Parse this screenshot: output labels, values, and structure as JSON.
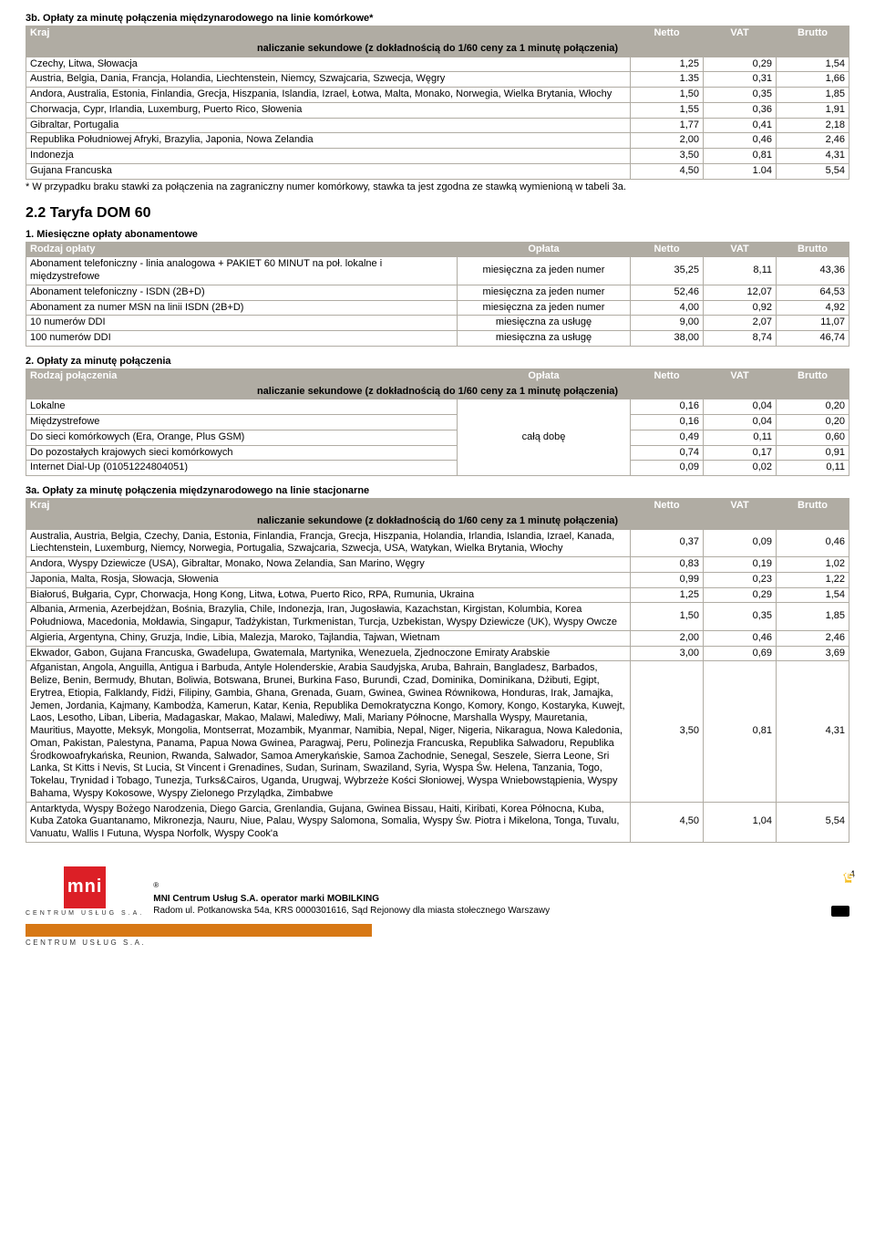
{
  "sec3b": {
    "title": "3b. Opłaty za minutę połączenia międzynarodowego na linie komórkowe*",
    "headers": [
      "Kraj",
      "Netto",
      "VAT",
      "Brutto"
    ],
    "subhead": "naliczanie sekundowe (z dokładnością do 1/60 ceny za 1 minutę połączenia)",
    "rows": [
      [
        "Czechy, Litwa, Słowacja",
        "1,25",
        "0,29",
        "1,54"
      ],
      [
        "Austria, Belgia, Dania, Francja, Holandia, Liechtenstein, Niemcy, Szwajcaria, Szwecja, Węgry",
        "1.35",
        "0,31",
        "1,66"
      ],
      [
        "Andora, Australia, Estonia, Finlandia, Grecja, Hiszpania, Islandia, Izrael, Łotwa, Malta, Monako, Norwegia, Wielka Brytania, Włochy",
        "1,50",
        "0,35",
        "1,85"
      ],
      [
        "Chorwacja, Cypr, Irlandia, Luxemburg, Puerto Rico, Słowenia",
        "1,55",
        "0,36",
        "1,91"
      ],
      [
        "Gibraltar, Portugalia",
        "1,77",
        "0,41",
        "2,18"
      ],
      [
        "Republika Południowej Afryki, Brazylia, Japonia, Nowa Zelandia",
        "2,00",
        "0,46",
        "2,46"
      ],
      [
        "Indonezja",
        "3,50",
        "0,81",
        "4,31"
      ],
      [
        "Gujana Francuska",
        "4,50",
        "1.04",
        "5,54"
      ]
    ],
    "note": "* W przypadku braku stawki za połączenia na zagraniczny numer komórkowy, stawka ta jest zgodna ze stawką wymienioną w tabeli 3a."
  },
  "tariff": {
    "title": "2.2 Taryfa DOM 60"
  },
  "sec1": {
    "title": "1. Miesięczne opłaty abonamentowe",
    "headers": [
      "Rodzaj opłaty",
      "Opłata",
      "Netto",
      "VAT",
      "Brutto"
    ],
    "rows": [
      [
        "Abonament telefoniczny - linia analogowa + PAKIET 60 MINUT na poł. lokalne i międzystrefowe",
        "miesięczna za jeden numer",
        "35,25",
        "8,11",
        "43,36"
      ],
      [
        "Abonament telefoniczny - ISDN (2B+D)",
        "miesięczna za jeden numer",
        "52,46",
        "12,07",
        "64,53"
      ],
      [
        "Abonament za numer MSN na linii ISDN (2B+D)",
        "miesięczna za jeden numer",
        "4,00",
        "0,92",
        "4,92"
      ],
      [
        "10 numerów DDI",
        "miesięczna za usługę",
        "9,00",
        "2,07",
        "11,07"
      ],
      [
        "100 numerów DDI",
        "miesięczna za usługę",
        "38,00",
        "8,74",
        "46,74"
      ]
    ]
  },
  "sec2": {
    "title": "2. Opłaty za minutę połączenia",
    "headers": [
      "Rodzaj połączenia",
      "Opłata",
      "Netto",
      "VAT",
      "Brutto"
    ],
    "subhead": "naliczanie sekundowe (z dokładnością do 1/60 ceny za 1 minutę połączenia)",
    "midLabel": "całą dobę",
    "rows": [
      [
        "Lokalne",
        "0,16",
        "0,04",
        "0,20"
      ],
      [
        "Międzystrefowe",
        "0,16",
        "0,04",
        "0,20"
      ],
      [
        "Do sieci komórkowych (Era, Orange, Plus GSM)",
        "0,49",
        "0,11",
        "0,60"
      ],
      [
        "Do pozostałych krajowych sieci komórkowych",
        "0,74",
        "0,17",
        "0,91"
      ],
      [
        "Internet Dial-Up (01051224804051)",
        "0,09",
        "0,02",
        "0,11"
      ]
    ]
  },
  "sec3a": {
    "title": "3a. Opłaty za minutę połączenia międzynarodowego na linie stacjonarne",
    "headers": [
      "Kraj",
      "Netto",
      "VAT",
      "Brutto"
    ],
    "subhead": "naliczanie sekundowe (z dokładnością do 1/60 ceny za 1 minutę połączenia)",
    "rows": [
      [
        "Australia, Austria, Belgia, Czechy, Dania, Estonia, Finlandia, Francja, Grecja, Hiszpania, Holandia, Irlandia, Islandia, Izrael, Kanada, Liechtenstein, Luxemburg, Niemcy, Norwegia, Portugalia, Szwajcaria, Szwecja, USA, Watykan, Wielka  Brytania, Włochy",
        "0,37",
        "0,09",
        "0,46"
      ],
      [
        "Andora, Wyspy Dziewicze (USA), Gibraltar, Monako, Nowa Zelandia, San Marino, Węgry",
        "0,83",
        "0,19",
        "1,02"
      ],
      [
        "Japonia, Malta, Rosja, Słowacja, Słowenia",
        "0,99",
        "0,23",
        "1,22"
      ],
      [
        "Białoruś, Bułgaria, Cypr, Chorwacja, Hong Kong, Litwa, Łotwa, Puerto Rico, RPA, Rumunia, Ukraina",
        "1,25",
        "0,29",
        "1,54"
      ],
      [
        "Albania, Armenia, Azerbejdżan, Bośnia, Brazylia, Chile, Indonezja, Iran, Jugosławia, Kazachstan, Kirgistan, Kolumbia, Korea Południowa, Macedonia, Mołdawia, Singapur, Tadżykistan, Turkmenistan, Turcja, Uzbekistan, Wyspy Dziewicze (UK), Wyspy Owcze",
        "1,50",
        "0,35",
        "1,85"
      ],
      [
        "Algieria, Argentyna, Chiny, Gruzja, Indie, Libia, Malezja, Maroko, Tajlandia, Tajwan, Wietnam",
        "2,00",
        "0,46",
        "2,46"
      ],
      [
        "Ekwador, Gabon, Gujana Francuska, Gwadelupa, Gwatemala, Martynika, Wenezuela, Zjednoczone Emiraty Arabskie",
        "3,00",
        "0,69",
        "3,69"
      ],
      [
        "Afganistan, Angola, Anguilla, Antigua i Barbuda, Antyle Holenderskie, Arabia Saudyjska, Aruba, Bahrain, Bangladesz, Barbados, Belize, Benin, Bermudy, Bhutan, Boliwia, Botswana, Brunei, Burkina Faso, Burundi, Czad, Dominika, Dominikana, Dżibuti, Egipt, Erytrea, Etiopia, Falklandy, Fidżi, Filipiny, Gambia, Ghana, Grenada, Guam, Gwinea, Gwinea Równikowa, Honduras, Irak, Jamajka, Jemen, Jordania, Kajmany, Kambodża, Kamerun, Katar, Kenia, Republika Demokratyczna Kongo, Komory, Kongo, Kostaryka, Kuwejt, Laos, Lesotho, Liban, Liberia, Madagaskar, Makao, Malawi, Malediwy, Mali, Mariany Północne, Marshalla Wyspy, Mauretania, Mauritius, Mayotte, Meksyk, Mongolia, Montserrat, Mozambik, Myanmar, Namibia, Nepal, Niger, Nigeria, Nikaragua, Nowa Kaledonia, Oman, Pakistan, Palestyna, Panama, Papua Nowa Gwinea, Paragwaj, Peru, Polinezja Francuska, Republika Salwadoru, Republika Środkowoafrykańska, Reunion, Rwanda, Salwador, Samoa Amerykańskie, Samoa Zachodnie, Senegal, Seszele, Sierra Leone, Sri Lanka, St Kitts i Nevis, St Lucia, St Vincent i Grenadines, Sudan, Surinam, Swaziland, Syria, Wyspa Św. Helena, Tanzania, Togo, Tokelau, Trynidad i Tobago, Tunezja, Turks&Cairos, Uganda, Urugwaj, Wybrzeże Kości Słoniowej, Wyspa Wniebowstąpienia, Wyspy Bahama, Wyspy Kokosowe, Wyspy Zielonego Przylądka, Zimbabwe",
        "3,50",
        "0,81",
        "4,31"
      ],
      [
        "Antarktyda, Wyspy Bożego Narodzenia, Diego Garcia, Grenlandia, Gujana, Gwinea Bissau, Haiti, Kiribati, Korea Północna, Kuba, Kuba Zatoka Guantanamo, Mikronezja, Nauru, Niue, Palau, Wyspy Salomona, Somalia, Wyspy Św. Piotra i Mikelona, Tonga, Tuvalu, Vanuatu, Wallis I Futuna, Wyspa Norfolk, Wyspy Cook'a",
        "4,50",
        "1,04",
        "5,54"
      ]
    ]
  },
  "footer": {
    "mni": "mni",
    "mniSub": "CENTRUM USŁUG S.A.",
    "reg": "®",
    "line1": "MNI Centrum Usług S.A. operator marki MOBILKING",
    "line2": "Radom ul. Potkanowska 54a, KRS 0000301616, Sąd Rejonowy dla miasta stołecznego Warszawy",
    "mobilking": "MOBILKING",
    "page": "4"
  }
}
